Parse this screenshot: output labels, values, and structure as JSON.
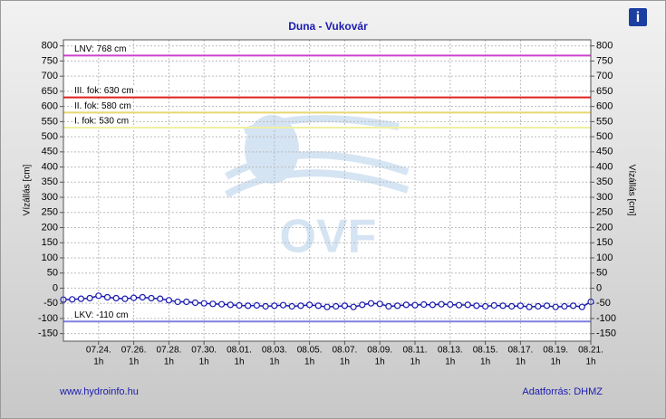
{
  "chart_data": {
    "type": "line",
    "title": "Duna - Vukovár",
    "y_label": "Vízállás [cm]",
    "source_left": "www.hydroinfo.hu",
    "source_right": "Adatforrás: DHMZ",
    "watermark": "OVF",
    "info_icon": "i",
    "x": [
      "07.22. 1h",
      "07.22. 13h",
      "07.23. 1h",
      "07.23. 13h",
      "07.24. 1h",
      "07.24. 13h",
      "07.25. 1h",
      "07.25. 13h",
      "07.26. 1h",
      "07.26. 13h",
      "07.27. 1h",
      "07.27. 13h",
      "07.28. 1h",
      "07.28. 13h",
      "07.29. 1h",
      "07.29. 13h",
      "07.30. 1h",
      "07.30. 13h",
      "07.31. 1h",
      "07.31. 13h",
      "08.01. 1h",
      "08.01. 13h",
      "08.02. 1h",
      "08.02. 13h",
      "08.03. 1h",
      "08.03. 13h",
      "08.04. 1h",
      "08.04. 13h",
      "08.05. 1h",
      "08.05. 13h",
      "08.06. 1h",
      "08.06. 13h",
      "08.07. 1h",
      "08.07. 13h",
      "08.08. 1h",
      "08.08. 13h",
      "08.09. 1h",
      "08.09. 13h",
      "08.10. 1h",
      "08.10. 13h",
      "08.11. 1h",
      "08.11. 13h",
      "08.12. 1h",
      "08.12. 13h",
      "08.13. 1h",
      "08.13. 13h",
      "08.14. 1h",
      "08.14. 13h",
      "08.15. 1h",
      "08.15. 13h",
      "08.16. 1h",
      "08.16. 13h",
      "08.17. 1h",
      "08.17. 13h",
      "08.18. 1h",
      "08.18. 13h",
      "08.19. 1h",
      "08.19. 13h",
      "08.20. 1h",
      "08.20. 13h",
      "08.21. 1h"
    ],
    "values": [
      -38,
      -37,
      -35,
      -33,
      -25,
      -30,
      -33,
      -35,
      -32,
      -30,
      -33,
      -35,
      -40,
      -45,
      -45,
      -48,
      -50,
      -52,
      -53,
      -55,
      -57,
      -58,
      -57,
      -60,
      -58,
      -56,
      -60,
      -58,
      -55,
      -58,
      -62,
      -60,
      -58,
      -62,
      -55,
      -50,
      -52,
      -60,
      -58,
      -55,
      -56,
      -54,
      -55,
      -53,
      -54,
      -56,
      -55,
      -58,
      -60,
      -57,
      -58,
      -60,
      -58,
      -62,
      -60,
      -58,
      -62,
      -60,
      -58,
      -62,
      -45
    ],
    "color": "#1a1ab0",
    "xticks": [
      {
        "value": "07.24. 1h",
        "label": "07.24.",
        "time": "1h"
      },
      {
        "value": "07.26. 1h",
        "label": "07.26.",
        "time": "1h"
      },
      {
        "value": "07.28. 1h",
        "label": "07.28.",
        "time": "1h"
      },
      {
        "value": "07.30. 1h",
        "label": "07.30.",
        "time": "1h"
      },
      {
        "value": "08.01. 1h",
        "label": "08.01.",
        "time": "1h"
      },
      {
        "value": "08.03. 1h",
        "label": "08.03.",
        "time": "1h"
      },
      {
        "value": "08.05. 1h",
        "label": "08.05.",
        "time": "1h"
      },
      {
        "value": "08.07. 1h",
        "label": "08.07.",
        "time": "1h"
      },
      {
        "value": "08.09. 1h",
        "label": "08.09.",
        "time": "1h"
      },
      {
        "value": "08.11. 1h",
        "label": "08.11.",
        "time": "1h"
      },
      {
        "value": "08.13. 1h",
        "label": "08.13.",
        "time": "1h"
      },
      {
        "value": "08.15. 1h",
        "label": "08.15.",
        "time": "1h"
      },
      {
        "value": "08.17. 1h",
        "label": "08.17.",
        "time": "1h"
      },
      {
        "value": "08.19. 1h",
        "label": "08.19.",
        "time": "1h"
      },
      {
        "value": "08.21. 1h",
        "label": "08.21.",
        "time": "1h"
      }
    ],
    "ylim": [
      -175,
      820
    ],
    "yticks": [
      -150,
      -100,
      -50,
      0,
      50,
      100,
      150,
      200,
      250,
      300,
      350,
      400,
      450,
      500,
      550,
      600,
      650,
      700,
      750,
      800
    ],
    "grid": true,
    "reference_lines": [
      {
        "label": "LNV: 768 cm",
        "value": 768,
        "color": "#d040d0"
      },
      {
        "label": "III. fok: 630 cm",
        "value": 630,
        "color": "#e02020"
      },
      {
        "label": "II. fok: 580 cm",
        "value": 580,
        "color": "#e8d870"
      },
      {
        "label": "I. fok: 530 cm",
        "value": 530,
        "color": "#f0f0a0"
      },
      {
        "label": "LKV: -110 cm",
        "value": -110,
        "color": "#8080e0"
      }
    ]
  }
}
